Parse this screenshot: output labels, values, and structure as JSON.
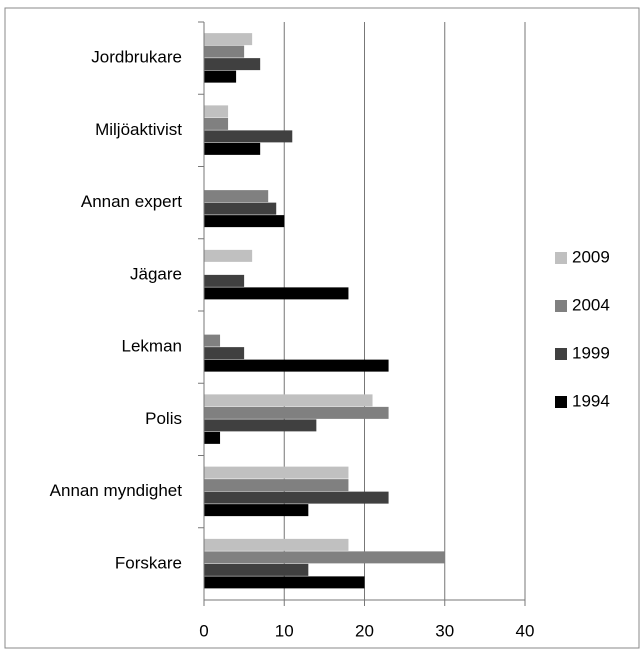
{
  "chart_data": {
    "type": "bar",
    "orientation": "horizontal",
    "categories": [
      "Jordbrukare",
      "Miljöaktivist",
      "Annan expert",
      "Jägare",
      "Lekman",
      "Polis",
      "Annan myndighet",
      "Forskare"
    ],
    "series": [
      {
        "name": "2009",
        "color": "#c0c0c0",
        "values": [
          6,
          3,
          0,
          6,
          0,
          21,
          18,
          18
        ]
      },
      {
        "name": "2004",
        "color": "#808080",
        "values": [
          5,
          3,
          8,
          0,
          2,
          23,
          18,
          30
        ]
      },
      {
        "name": "1999",
        "color": "#404040",
        "values": [
          7,
          11,
          9,
          5,
          5,
          14,
          23,
          13
        ]
      },
      {
        "name": "1994",
        "color": "#000000",
        "values": [
          4,
          7,
          10,
          18,
          23,
          2,
          13,
          20
        ]
      }
    ],
    "xlim": [
      0,
      40
    ],
    "xticks": [
      0,
      10,
      20,
      30,
      40
    ],
    "grid": true,
    "legend": "right"
  }
}
